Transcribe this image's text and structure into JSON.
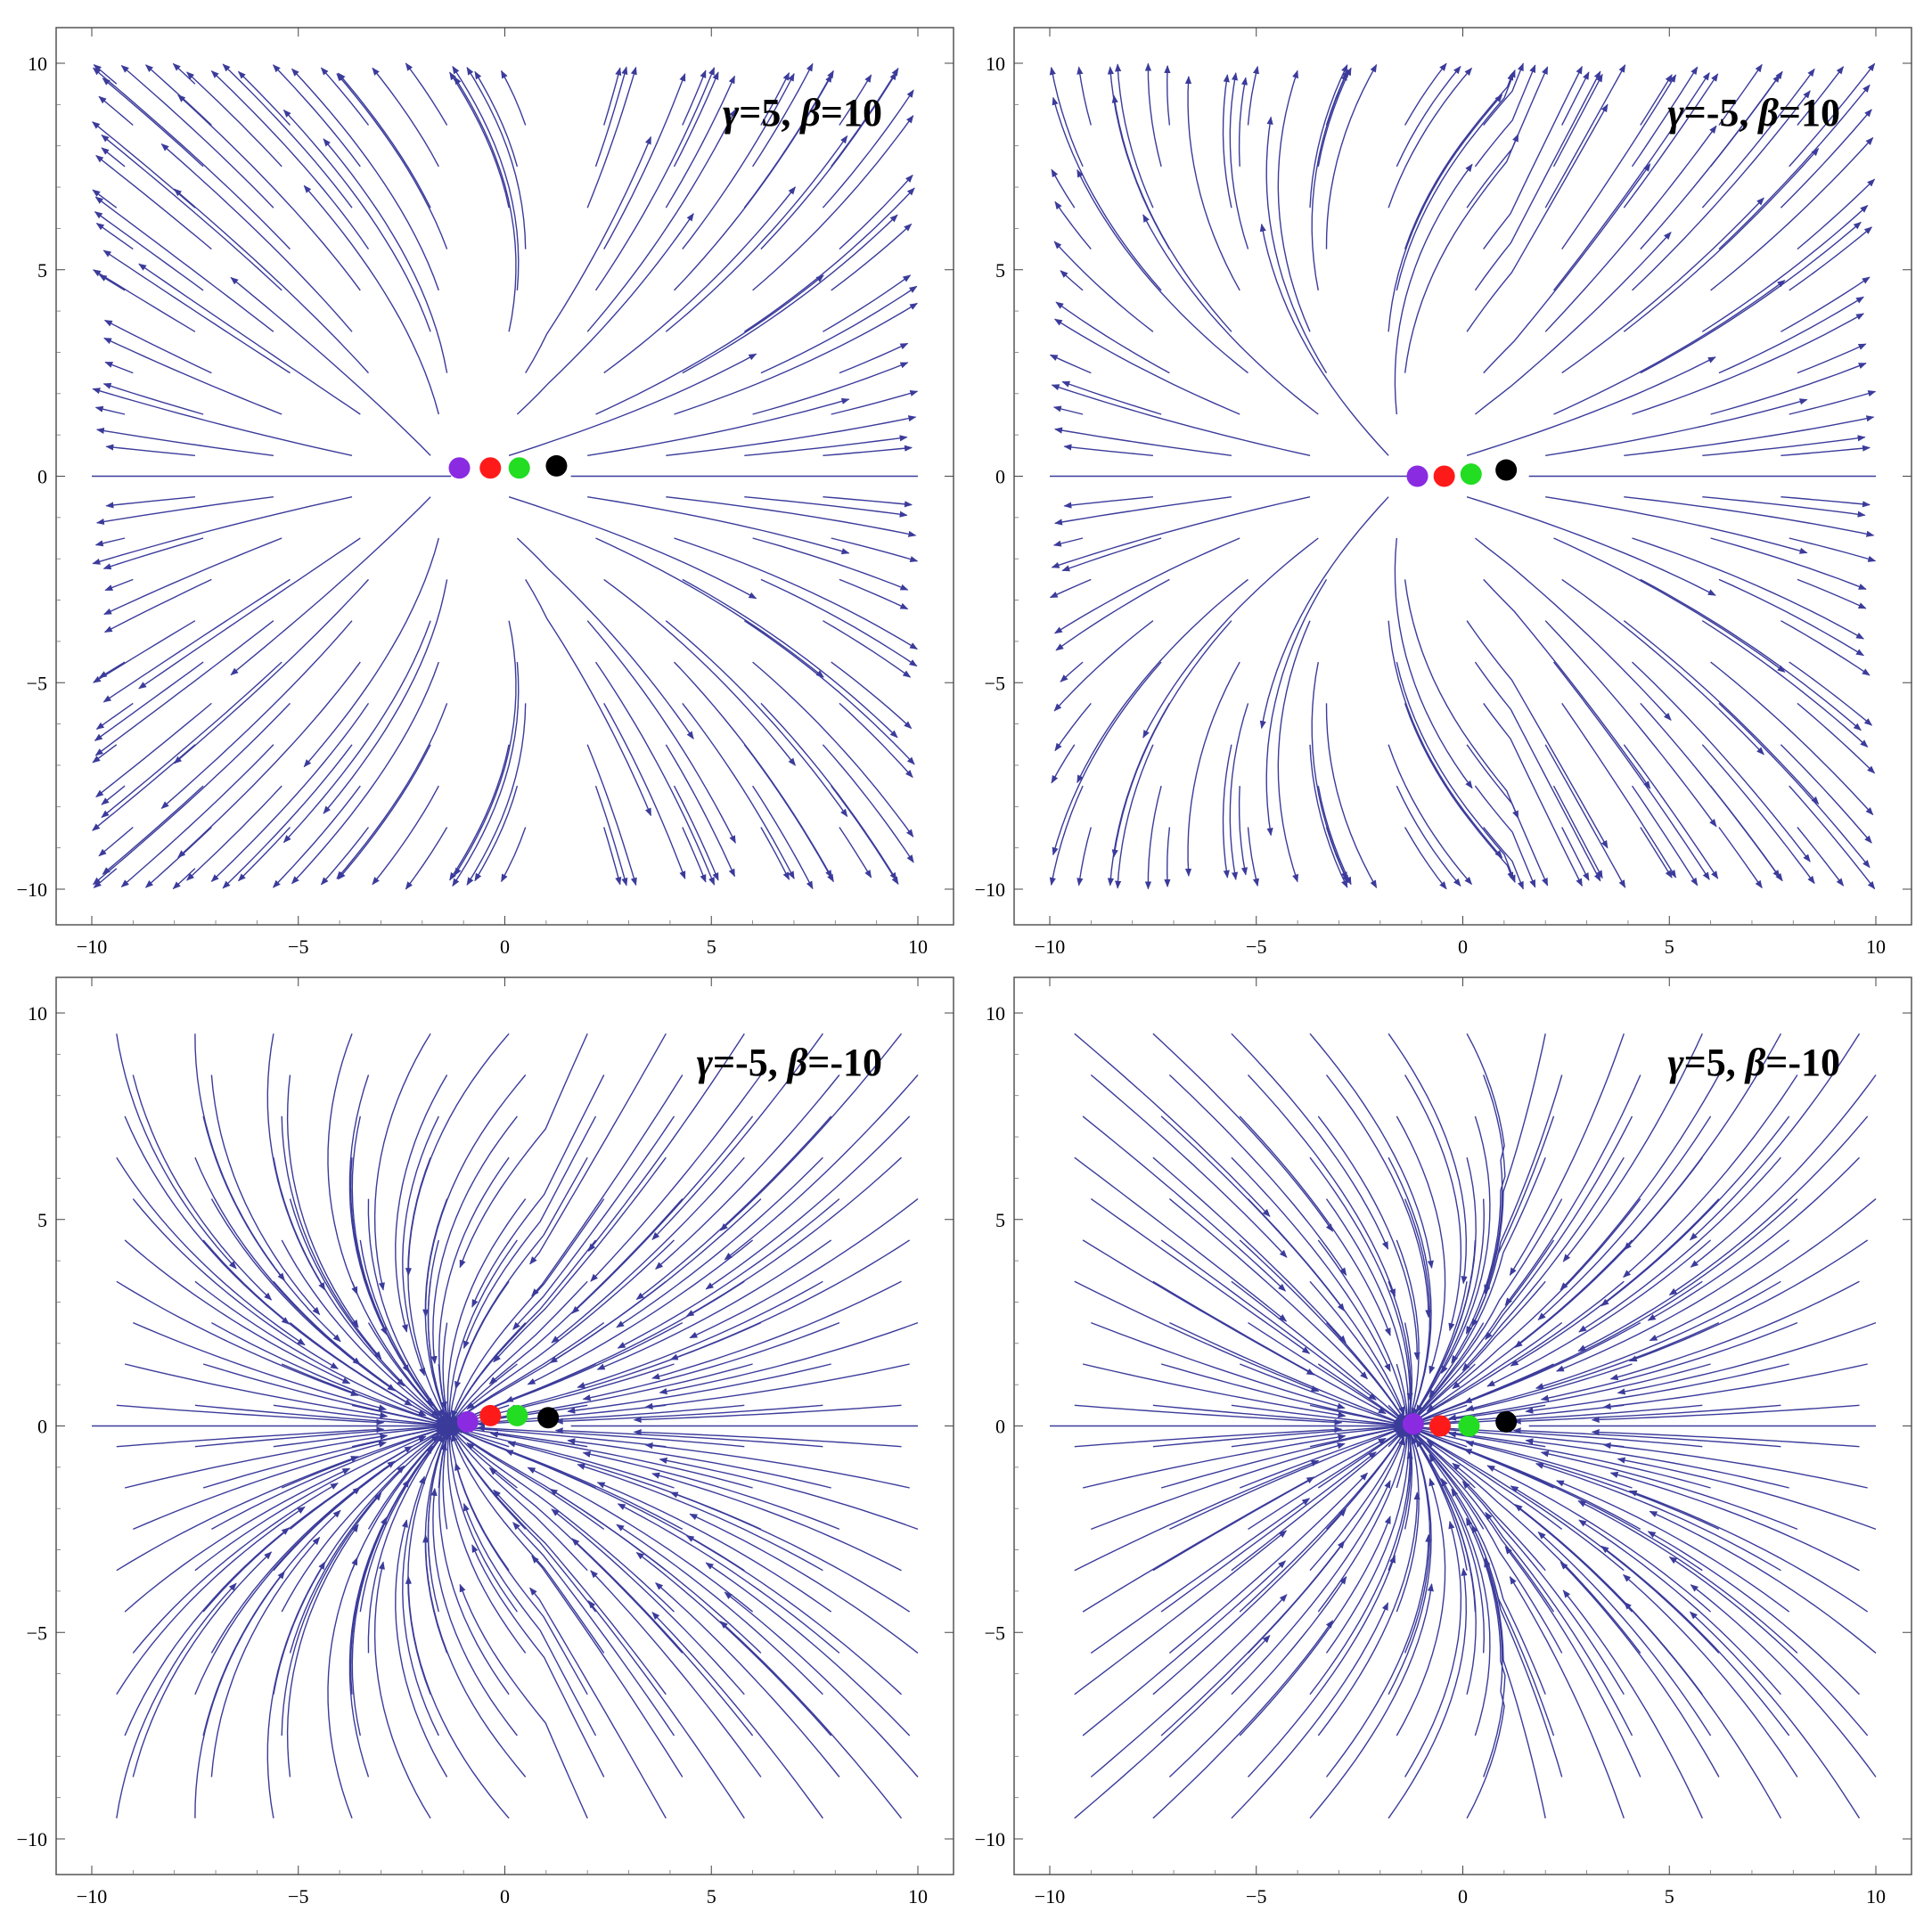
{
  "chart_data": [
    {
      "type": "streamplot",
      "annotation": {
        "gamma_symbol": "γ",
        "gamma_value": "=5, ",
        "beta_symbol": "β",
        "beta_value": "=10"
      },
      "gamma": 5,
      "beta": 10,
      "xlim": [
        -10,
        10
      ],
      "ylim": [
        -10,
        10
      ],
      "x_ticks": [
        "−10",
        "−5",
        "0",
        "5",
        "10"
      ],
      "y_ticks": [
        "10",
        "5",
        "0",
        "−5",
        "−10"
      ],
      "stream_color": "#3b3b9b",
      "critical_points": [
        {
          "color": "#8a2be2",
          "x": -1.1,
          "y": 0.2
        },
        {
          "color": "#ff1a1a",
          "x": -0.35,
          "y": 0.2
        },
        {
          "color": "#22dd22",
          "x": 0.35,
          "y": 0.2
        },
        {
          "color": "#000000",
          "x": 1.25,
          "y": 0.25
        }
      ]
    },
    {
      "type": "streamplot",
      "annotation": {
        "gamma_symbol": "γ",
        "gamma_value": "=-5, ",
        "beta_symbol": "β",
        "beta_value": "=10"
      },
      "gamma": -5,
      "beta": 10,
      "xlim": [
        -10,
        10
      ],
      "ylim": [
        -10,
        10
      ],
      "x_ticks": [
        "−10",
        "−5",
        "0",
        "5",
        "10"
      ],
      "y_ticks": [
        "10",
        "5",
        "0",
        "−5",
        "−10"
      ],
      "stream_color": "#3b3b9b",
      "critical_points": [
        {
          "color": "#8a2be2",
          "x": -1.1,
          "y": 0.0
        },
        {
          "color": "#ff1a1a",
          "x": -0.45,
          "y": 0.0
        },
        {
          "color": "#22dd22",
          "x": 0.2,
          "y": 0.05
        },
        {
          "color": "#000000",
          "x": 1.05,
          "y": 0.15
        }
      ]
    },
    {
      "type": "streamplot",
      "annotation": {
        "gamma_symbol": "γ",
        "gamma_value": "=-5, ",
        "beta_symbol": "β",
        "beta_value": "=-10"
      },
      "gamma": -5,
      "beta": -10,
      "xlim": [
        -10,
        10
      ],
      "ylim": [
        -10,
        10
      ],
      "x_ticks": [
        "−10",
        "−5",
        "0",
        "5",
        "10"
      ],
      "y_ticks": [
        "10",
        "5",
        "0",
        "−5",
        "−10"
      ],
      "stream_color": "#3b3b9b",
      "critical_points": [
        {
          "color": "#8a2be2",
          "x": -0.9,
          "y": 0.1
        },
        {
          "color": "#ff1a1a",
          "x": -0.35,
          "y": 0.25
        },
        {
          "color": "#22dd22",
          "x": 0.3,
          "y": 0.25
        },
        {
          "color": "#000000",
          "x": 1.05,
          "y": 0.2
        }
      ]
    },
    {
      "type": "streamplot",
      "annotation": {
        "gamma_symbol": "γ",
        "gamma_value": "=5, ",
        "beta_symbol": "β",
        "beta_value": "=-10"
      },
      "gamma": 5,
      "beta": -10,
      "xlim": [
        -10,
        10
      ],
      "ylim": [
        -10,
        10
      ],
      "x_ticks": [
        "−10",
        "−5",
        "0",
        "5",
        "10"
      ],
      "y_ticks": [
        "10",
        "5",
        "0",
        "−5",
        "−10"
      ],
      "stream_color": "#3b3b9b",
      "critical_points": [
        {
          "color": "#8a2be2",
          "x": -1.2,
          "y": 0.05
        },
        {
          "color": "#ff1a1a",
          "x": -0.55,
          "y": 0.0
        },
        {
          "color": "#22dd22",
          "x": 0.15,
          "y": 0.0
        },
        {
          "color": "#000000",
          "x": 1.05,
          "y": 0.1
        }
      ]
    }
  ]
}
